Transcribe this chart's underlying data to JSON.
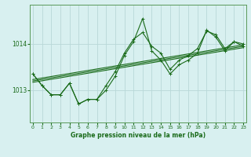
{
  "title": "Graphe pression niveau de la mer (hPa)",
  "background_color": "#d8f0f0",
  "grid_color": "#b8d8d8",
  "line_color": "#1a6b1a",
  "x_ticks": [
    0,
    1,
    2,
    3,
    4,
    5,
    6,
    7,
    8,
    9,
    10,
    11,
    12,
    13,
    14,
    15,
    16,
    17,
    18,
    19,
    20,
    21,
    22,
    23
  ],
  "y_ticks": [
    1013,
    1014
  ],
  "ylim": [
    1012.3,
    1014.85
  ],
  "xlim": [
    -0.3,
    23.3
  ],
  "series1": [
    1013.35,
    1013.1,
    1012.9,
    1012.9,
    1013.15,
    1012.7,
    1012.8,
    1012.8,
    1013.0,
    1013.3,
    1013.75,
    1014.05,
    1014.55,
    1013.85,
    1013.65,
    1013.35,
    1013.55,
    1013.65,
    1013.8,
    1014.3,
    1014.15,
    1013.85,
    1014.05,
    1013.95
  ],
  "series2": [
    1013.35,
    1013.1,
    1012.9,
    1012.9,
    1013.15,
    1012.7,
    1012.8,
    1012.8,
    1013.1,
    1013.4,
    1013.8,
    1014.1,
    1014.25,
    1013.95,
    1013.8,
    1013.45,
    1013.65,
    1013.75,
    1013.9,
    1014.28,
    1014.2,
    1013.9,
    1014.05,
    1014.0
  ],
  "trend_lines": [
    [
      1013.2,
      1013.95
    ],
    [
      1013.23,
      1013.98
    ],
    [
      1013.17,
      1013.92
    ]
  ]
}
